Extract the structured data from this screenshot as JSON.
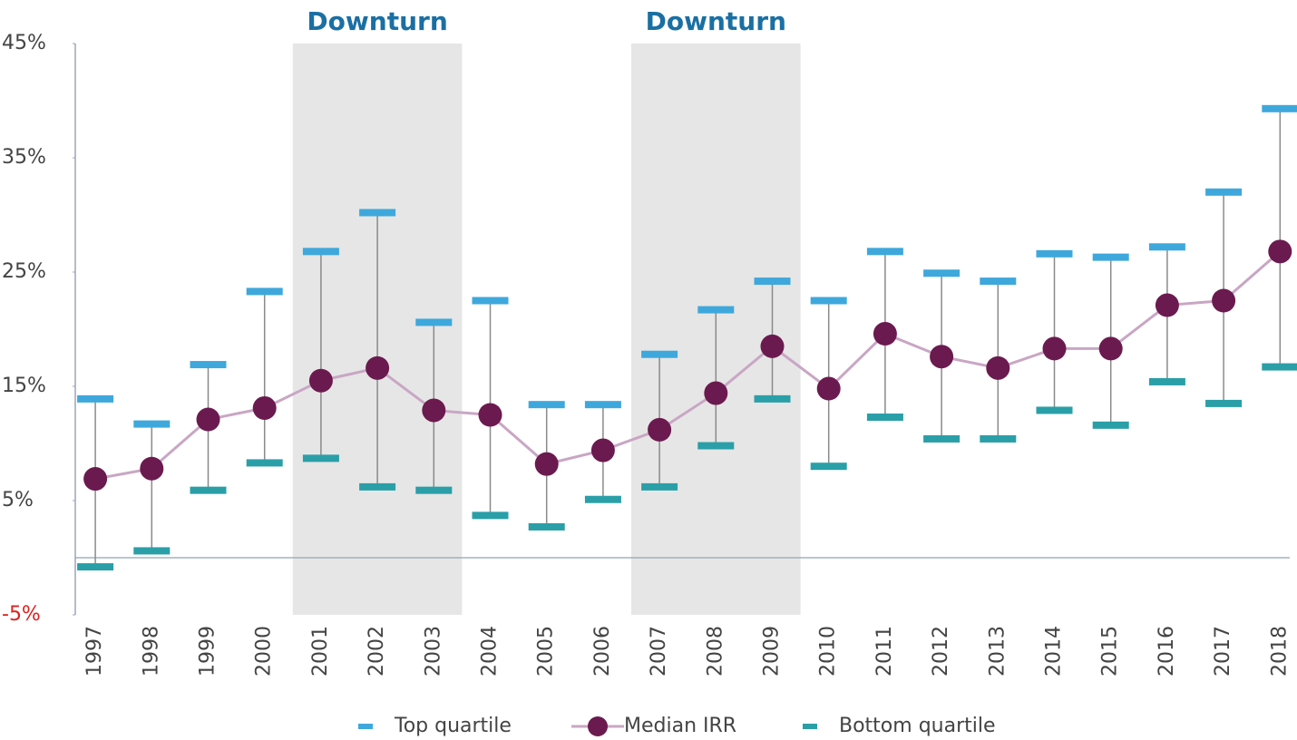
{
  "chart_data": {
    "type": "errorbar_line",
    "categories": [
      "1997",
      "1998",
      "1999",
      "2000",
      "2001",
      "2002",
      "2003",
      "2004",
      "2005",
      "2006",
      "2007",
      "2008",
      "2009",
      "2010",
      "2011",
      "2012",
      "2013",
      "2014",
      "2015",
      "2016",
      "2017",
      "2018"
    ],
    "series": [
      {
        "name": "Top quartile",
        "color": "#3ea8dc",
        "marker": "dash",
        "values": [
          13.9,
          11.7,
          16.9,
          23.3,
          26.8,
          30.2,
          20.6,
          22.5,
          13.4,
          13.4,
          17.8,
          21.7,
          24.2,
          22.5,
          26.8,
          24.9,
          24.2,
          26.6,
          26.3,
          27.2,
          32.0,
          39.3
        ]
      },
      {
        "name": "Median IRR",
        "color": "#6b1a4f",
        "line_color": "#c9a6c4",
        "marker": "dot",
        "values": [
          6.9,
          7.8,
          12.1,
          13.1,
          15.5,
          16.6,
          12.9,
          12.5,
          8.2,
          9.4,
          11.2,
          14.4,
          18.5,
          14.8,
          19.6,
          17.6,
          16.6,
          18.3,
          18.3,
          22.1,
          22.5,
          26.8
        ]
      },
      {
        "name": "Bottom quartile",
        "color": "#2a9fa8",
        "marker": "dash",
        "values": [
          -0.8,
          0.6,
          5.9,
          8.3,
          8.7,
          6.2,
          5.9,
          3.7,
          2.7,
          5.1,
          6.2,
          9.8,
          13.9,
          8.0,
          12.3,
          10.4,
          10.4,
          12.9,
          11.6,
          15.4,
          13.5,
          16.7
        ]
      }
    ],
    "shaded": [
      {
        "label": "Downturn",
        "from": "2001",
        "to": "2003"
      },
      {
        "label": "Downturn",
        "from": "2007",
        "to": "2009"
      }
    ],
    "ylim": [
      -5,
      45
    ],
    "yticks": [
      {
        "value": -5,
        "label": "-5%"
      },
      {
        "value": 5,
        "label": "5%"
      },
      {
        "value": 15,
        "label": "15%"
      },
      {
        "value": 25,
        "label": "25%"
      },
      {
        "value": 35,
        "label": "35%"
      },
      {
        "value": 45,
        "label": "45%"
      }
    ],
    "negative_tick_color": "#e02020",
    "legend": "bottom"
  }
}
